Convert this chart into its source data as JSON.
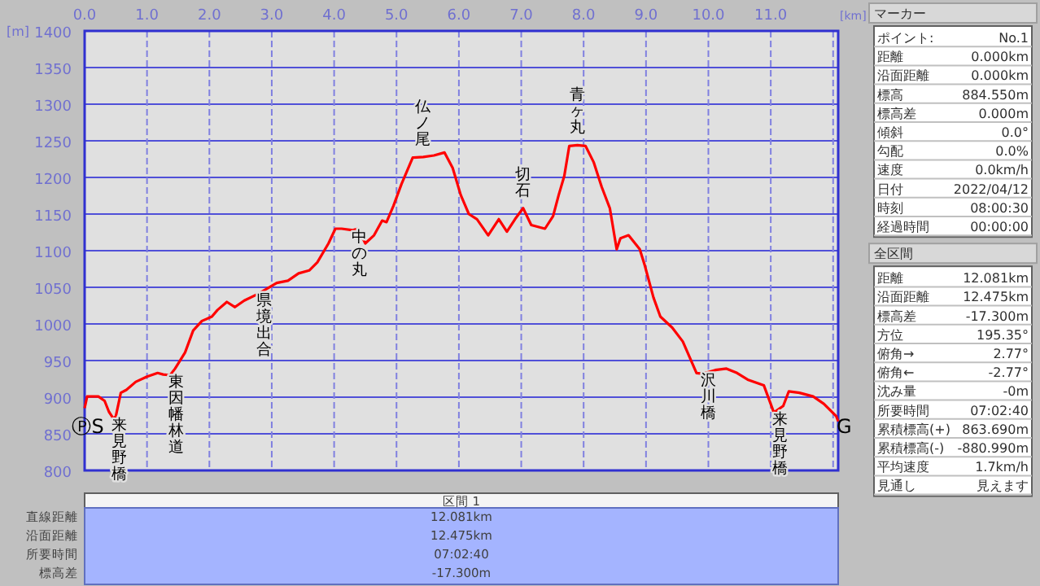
{
  "chart_data": [
    {
      "type": "line",
      "xlabel": "[km]",
      "ylabel": "[m]",
      "color": "#ff0000",
      "grid": true,
      "xlim": [
        0,
        12.081
      ],
      "xticks": [
        {
          "value": 0,
          "label": "0.0"
        },
        {
          "value": 1,
          "label": "1.0"
        },
        {
          "value": 2,
          "label": "2.0"
        },
        {
          "value": 3,
          "label": "3.0"
        },
        {
          "value": 4,
          "label": "4.0"
        },
        {
          "value": 5,
          "label": "5.0"
        },
        {
          "value": 6,
          "label": "6.0"
        },
        {
          "value": 7,
          "label": "7.0"
        },
        {
          "value": 8,
          "label": "8.0"
        },
        {
          "value": 9,
          "label": "9.0"
        },
        {
          "value": 10,
          "label": "10.0"
        },
        {
          "value": 11,
          "label": "11.0"
        },
        {
          "value": 12,
          "label": null
        }
      ],
      "ylim": [
        800,
        1400
      ],
      "yticks": [
        800,
        850,
        900,
        950,
        1000,
        1050,
        1100,
        1150,
        1200,
        1250,
        1300,
        1350,
        1400
      ],
      "x": [
        0,
        0.04,
        0.22,
        0.32,
        0.39,
        0.46,
        0.5,
        0.58,
        0.67,
        0.82,
        1.0,
        1.17,
        1.26,
        1.37,
        1.45,
        1.61,
        1.74,
        1.88,
        2.04,
        2.13,
        2.28,
        2.41,
        2.56,
        2.78,
        3.08,
        3.26,
        3.43,
        3.6,
        3.73,
        3.91,
        4.02,
        4.12,
        4.3,
        4.38,
        4.5,
        4.64,
        4.77,
        4.84,
        4.95,
        5.08,
        5.26,
        5.43,
        5.6,
        5.77,
        5.9,
        6.03,
        6.16,
        6.29,
        6.47,
        6.64,
        6.77,
        6.9,
        7.03,
        7.16,
        7.38,
        7.51,
        7.6,
        7.69,
        7.77,
        7.9,
        8.03,
        8.16,
        8.29,
        8.42,
        8.53,
        8.59,
        8.72,
        8.9,
        8.98,
        9.12,
        9.23,
        9.42,
        9.59,
        9.81,
        9.9,
        10.11,
        10.29,
        10.46,
        10.63,
        10.89,
        11.05,
        11.2,
        11.29,
        11.46,
        11.68,
        11.85,
        12.05,
        12.081
      ],
      "values": [
        885,
        901,
        901,
        895,
        880,
        871,
        874,
        906,
        910,
        921,
        928,
        933,
        931,
        930,
        939,
        961,
        991,
        1004,
        1010,
        1019,
        1030,
        1023,
        1032,
        1041,
        1056,
        1059,
        1069,
        1073,
        1084,
        1110,
        1130,
        1130,
        1128,
        1130,
        1110,
        1121,
        1141,
        1139,
        1161,
        1191,
        1227,
        1228,
        1230,
        1234,
        1213,
        1176,
        1150,
        1143,
        1121,
        1143,
        1126,
        1143,
        1158,
        1135,
        1130,
        1147,
        1176,
        1202,
        1243,
        1244,
        1243,
        1221,
        1187,
        1158,
        1102,
        1117,
        1121,
        1102,
        1080,
        1036,
        1010,
        995,
        976,
        933,
        932,
        937,
        939,
        933,
        924,
        916,
        879,
        888,
        908,
        906,
        901,
        891,
        874,
        867
      ],
      "annotations": [
        {
          "text": "ⓅS",
          "x": 0,
          "y": 885
        },
        {
          "text": "来見野橋",
          "x": 0.46,
          "y": 871
        },
        {
          "text": "東因幡林道",
          "x": 1.37,
          "y": 930
        },
        {
          "text": "県境出合",
          "x": 2.78,
          "y": 1041
        },
        {
          "text": "中の丸",
          "x": 4.3,
          "y": 1128
        },
        {
          "text": "仏ノ尾",
          "x": 5.43,
          "y": 1228
        },
        {
          "text": "切石",
          "x": 7.03,
          "y": 1158
        },
        {
          "text": "青ヶ丸",
          "x": 7.9,
          "y": 1244
        },
        {
          "text": "沢川橋",
          "x": 9.9,
          "y": 932
        },
        {
          "text": "来見野橋",
          "x": 11.05,
          "y": 879
        },
        {
          "text": "G",
          "x": 12.081,
          "y": 867
        },
        "区間 1",
        "直線距離",
        "12.081km",
        "沿面距離",
        "12.475km",
        "所要時間",
        "07:02:40",
        "標高差",
        "-17.300m"
      ]
    },
    {
      "type": "other",
      "title": "マーカー",
      "annotations": [
        "ポイント:",
        "No.1",
        "距離",
        "0.000km",
        "沿面距離",
        "0.000km",
        "標高",
        "884.550m",
        "標高差",
        "0.000m",
        "傾斜",
        "0.0°",
        "勾配",
        "0.0%",
        "速度",
        "0.0km/h",
        "日付",
        "2022/04/12",
        "時刻",
        "08:00:30",
        "経過時間",
        "00:00:00"
      ]
    },
    {
      "type": "other",
      "title": "全区間",
      "annotations": [
        "距離",
        "12.081km",
        "沿面距離",
        "12.475km",
        "標高差",
        "-17.300m",
        "方位",
        "195.35°",
        "俯角→",
        "2.77°",
        "俯角←",
        "-2.77°",
        "沈み量",
        "-0m",
        "所要時間",
        "07:02:40",
        "累積標高(+)",
        "863.690m",
        "累積標高(-)",
        "-880.990m",
        "平均速度",
        "1.7km/h",
        "見通し",
        "見えます"
      ]
    }
  ]
}
